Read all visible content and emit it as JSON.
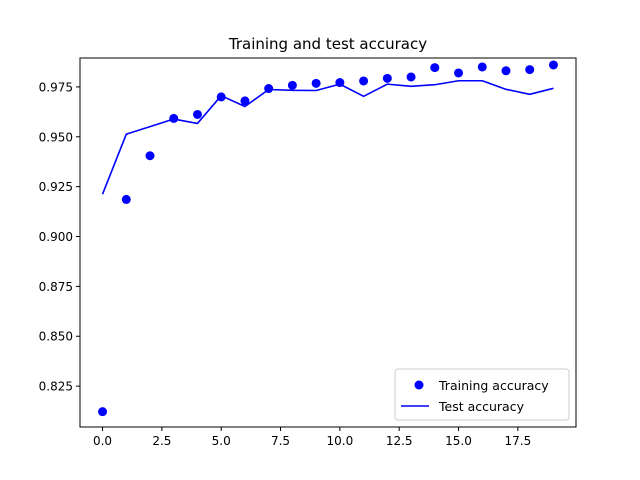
{
  "chart_data": {
    "type": "line",
    "title": "Training and test accuracy",
    "xlabel": "",
    "ylabel": "",
    "xlim": [
      -0.95,
      19.95
    ],
    "ylim": [
      0.8045,
      0.9895
    ],
    "xticks": [
      0.0,
      2.5,
      5.0,
      7.5,
      10.0,
      12.5,
      15.0,
      17.5
    ],
    "xtick_labels": [
      "0.0",
      "2.5",
      "5.0",
      "7.5",
      "10.0",
      "12.5",
      "15.0",
      "17.5"
    ],
    "yticks": [
      0.825,
      0.85,
      0.875,
      0.9,
      0.925,
      0.95,
      0.975
    ],
    "ytick_labels": [
      "0.825",
      "0.850",
      "0.875",
      "0.900",
      "0.925",
      "0.950",
      "0.975"
    ],
    "grid": false,
    "legend_position": "lower-right",
    "series": [
      {
        "name": "Training accuracy",
        "style": "markers",
        "color": "#0000ff",
        "x": [
          0,
          1,
          2,
          3,
          4,
          5,
          6,
          7,
          8,
          9,
          10,
          11,
          12,
          13,
          14,
          15,
          16,
          17,
          18,
          19
        ],
        "y": [
          0.8122,
          0.9186,
          0.9405,
          0.9592,
          0.9612,
          0.97,
          0.968,
          0.9742,
          0.9758,
          0.9768,
          0.9772,
          0.978,
          0.9793,
          0.98,
          0.9847,
          0.982,
          0.985,
          0.9831,
          0.9837,
          0.986
        ]
      },
      {
        "name": "Test accuracy",
        "style": "line",
        "color": "#0000ff",
        "x": [
          0,
          1,
          2,
          3,
          4,
          5,
          6,
          7,
          8,
          9,
          10,
          11,
          12,
          13,
          14,
          15,
          16,
          17,
          18,
          19
        ],
        "y": [
          0.9212,
          0.9513,
          0.9551,
          0.9589,
          0.9567,
          0.9706,
          0.9652,
          0.9737,
          0.9733,
          0.9732,
          0.9764,
          0.9703,
          0.9764,
          0.9753,
          0.9761,
          0.9781,
          0.9781,
          0.9738,
          0.9713,
          0.9743
        ]
      }
    ]
  }
}
